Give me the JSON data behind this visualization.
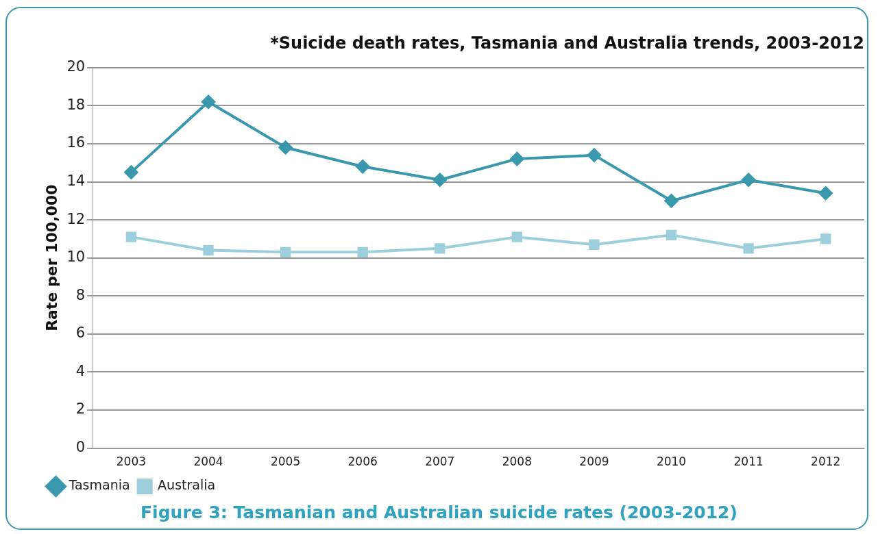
{
  "chart_data": {
    "type": "line",
    "title": "*Suicide death rates, Tasmania and Australia trends, 2003-2012",
    "ylabel": "Rate per 100,000",
    "categories": [
      "2003",
      "2004",
      "2005",
      "2006",
      "2007",
      "2008",
      "2009",
      "2010",
      "2011",
      "2012"
    ],
    "series": [
      {
        "name": "Tasmania",
        "color": "#3a98ac",
        "marker": "diamond",
        "values": [
          14.5,
          18.2,
          15.8,
          14.8,
          14.1,
          15.2,
          15.4,
          13.0,
          14.1,
          13.4
        ]
      },
      {
        "name": "Australia",
        "color": "#9ccfdb",
        "marker": "square",
        "values": [
          11.1,
          10.4,
          10.3,
          10.3,
          10.5,
          11.1,
          10.7,
          11.2,
          10.5,
          11.0
        ]
      }
    ],
    "ylim": [
      0,
      20
    ],
    "yticks": [
      0,
      2,
      4,
      6,
      8,
      10,
      12,
      14,
      16,
      18,
      20
    ],
    "grid": "y",
    "legend": "bottom left",
    "line_style": "solid",
    "annotations": [
      "Figure 3: Tasmanian and Australian suicide rates (2003-2012)"
    ]
  }
}
